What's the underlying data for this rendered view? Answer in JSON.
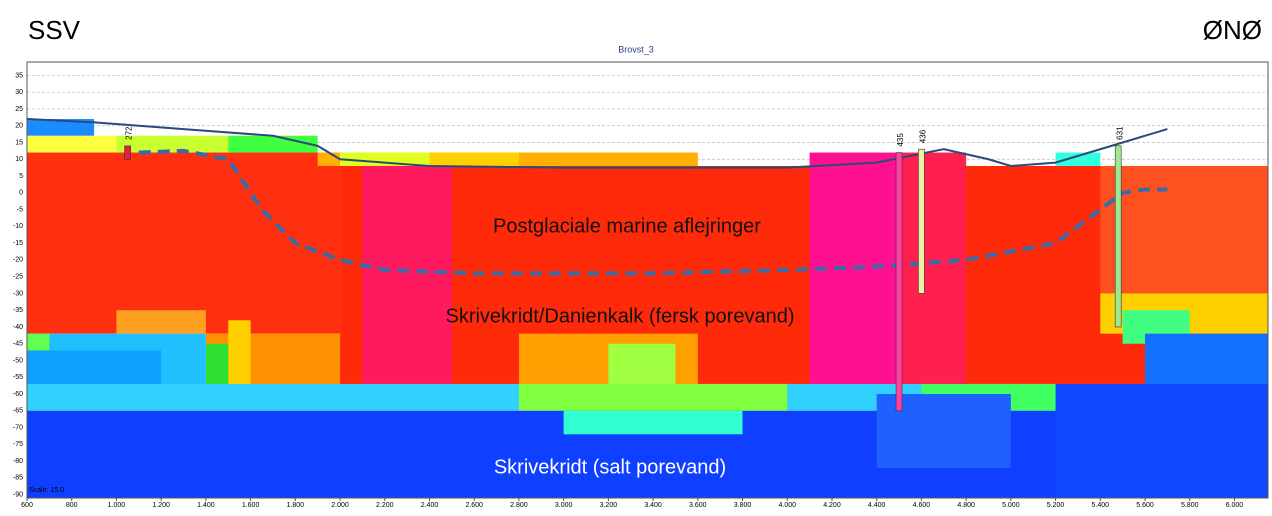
{
  "header": {
    "left": "SSV",
    "right": "ØNØ"
  },
  "chart_data": {
    "type": "section",
    "title": "Brovst_3",
    "scale_label": "Scale: 15.0",
    "xlim": [
      600,
      6150
    ],
    "ylim": [
      -91,
      39
    ],
    "xticks": [
      600,
      800,
      {
        "value": 1000,
        "label": "1.000"
      },
      {
        "value": 1200,
        "label": "1.200"
      },
      {
        "value": 1400,
        "label": "1.400"
      },
      {
        "value": 1600,
        "label": "1.600"
      },
      {
        "value": 1800,
        "label": "1.800"
      },
      {
        "value": 2000,
        "label": "2.000"
      },
      {
        "value": 2200,
        "label": "2.200"
      },
      {
        "value": 2400,
        "label": "2.400"
      },
      {
        "value": 2600,
        "label": "2.600"
      },
      {
        "value": 2800,
        "label": "2.800"
      },
      {
        "value": 3000,
        "label": "3.000"
      },
      {
        "value": 3200,
        "label": "3.200"
      },
      {
        "value": 3400,
        "label": "3.400"
      },
      {
        "value": 3600,
        "label": "3.600"
      },
      {
        "value": 3800,
        "label": "3.800"
      },
      {
        "value": 4000,
        "label": "4.000"
      },
      {
        "value": 4200,
        "label": "4.200"
      },
      {
        "value": 4400,
        "label": "4.400"
      },
      {
        "value": 4600,
        "label": "4.600"
      },
      {
        "value": 4800,
        "label": "4.800"
      },
      {
        "value": 5000,
        "label": "5.000"
      },
      {
        "value": 5200,
        "label": "5.200"
      },
      {
        "value": 5400,
        "label": "5.400"
      },
      {
        "value": 5600,
        "label": "5.600"
      },
      {
        "value": 5800,
        "label": "5.800"
      },
      {
        "value": 6000,
        "label": "6.000"
      }
    ],
    "yticks": [
      35,
      30,
      25,
      20,
      15,
      10,
      5,
      0,
      -5,
      -10,
      -15,
      -20,
      -25,
      -30,
      -35,
      -40,
      -45,
      -50,
      -55,
      -60,
      -65,
      -70,
      -75,
      -80,
      -85,
      -90
    ],
    "grid": true,
    "lines": [
      {
        "color": "#2a4a7a",
        "dash": false,
        "x": [
          600,
          900,
          1300,
          1700,
          1900,
          2000,
          2400,
          3000,
          4000,
          4400,
          4700,
          4900,
          5000,
          5200,
          5500,
          5700
        ],
        "values": [
          22,
          21,
          19,
          17,
          14,
          10,
          8,
          7.5,
          7.5,
          9,
          13,
          10,
          8,
          9,
          15,
          19
        ]
      },
      {
        "color": "#3a6aa8",
        "dash": true,
        "x": [
          1100,
          1300,
          1500,
          1650,
          1800,
          2000,
          2200,
          2600,
          3400,
          4000,
          4400,
          4800,
          5200,
          5400,
          5500,
          5600,
          5700
        ],
        "values": [
          12,
          12.5,
          10,
          -5,
          -15,
          -20,
          -23,
          -24,
          -24,
          -23,
          -22,
          -20,
          -15,
          -5,
          0,
          1,
          1
        ]
      }
    ],
    "annotations": [
      "Postglaciale marine aflejringer",
      "Skrivekridt/Danienkalk (fersk porevand)",
      "Skrivekridt (salt porevand)"
    ],
    "boreholes": [
      "272",
      "435",
      "436",
      "631"
    ]
  }
}
